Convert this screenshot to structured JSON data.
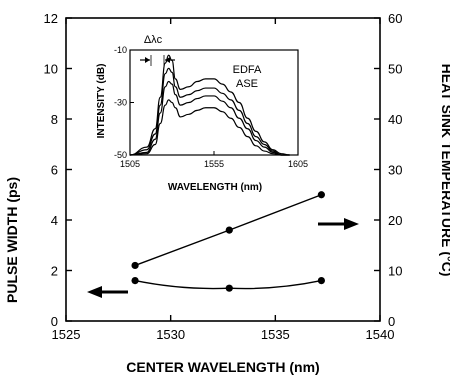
{
  "chart_data": [
    {
      "type": "line",
      "xlabel": "CENTER WAVELENGTH (nm)",
      "ylabel_left": "PULSE WIDTH (ps)",
      "ylabel_right": "HEAT SINK TEMPERATURE (°C)",
      "xlim": [
        1525,
        1540
      ],
      "ylim_left": [
        0,
        12
      ],
      "ylim_right": [
        0,
        60
      ],
      "x_ticks": [
        "1525",
        "1530",
        "1535",
        "1540"
      ],
      "y_left_ticks": [
        "0",
        "2",
        "4",
        "6",
        "8",
        "10",
        "12"
      ],
      "y_right_ticks": [
        "0",
        "10",
        "20",
        "30",
        "40",
        "50",
        "60"
      ],
      "series": [
        {
          "axis": "right",
          "x": [
            1528.3,
            1532.8,
            1537.2
          ],
          "y": [
            11,
            18,
            25
          ],
          "arrow": "right"
        },
        {
          "axis": "left",
          "x": [
            1528.3,
            1532.8,
            1537.2
          ],
          "y": [
            1.6,
            1.3,
            1.6
          ],
          "arrow": "left"
        }
      ],
      "grid": false
    },
    {
      "type": "line",
      "xlabel": "WAVELENGTH (nm)",
      "ylabel": "INTENSITY (dB)",
      "xlim": [
        1505,
        1605
      ],
      "ylim": [
        -50,
        -10
      ],
      "x_ticks": [
        "1505",
        "1555",
        "1605"
      ],
      "y_ticks": [
        "-10",
        "-30",
        "-50"
      ],
      "annotation_label": "Δλc",
      "legend_text": [
        "EDFA",
        "ASE"
      ],
      "series": [
        {
          "x": [
            1505,
            1515,
            1520,
            1523,
            1526,
            1528,
            1530,
            1532,
            1535,
            1540,
            1545,
            1550,
            1555,
            1560,
            1565,
            1570,
            1575,
            1580,
            1585,
            1590,
            1595,
            1600
          ],
          "y": [
            -50,
            -47,
            -40,
            -28,
            -15,
            -12,
            -14,
            -21,
            -25,
            -24,
            -22,
            -21,
            -21,
            -23,
            -26,
            -30,
            -36,
            -41,
            -45,
            -48,
            -49.5,
            -50
          ]
        },
        {
          "x": [
            1505,
            1515,
            1520,
            1523,
            1526,
            1528,
            1530,
            1532,
            1535,
            1540,
            1545,
            1550,
            1555,
            1560,
            1565,
            1570,
            1575,
            1580,
            1585,
            1590,
            1595,
            1600
          ],
          "y": [
            -50,
            -48,
            -42,
            -31,
            -19,
            -17,
            -18.5,
            -24,
            -28,
            -27,
            -25.5,
            -24.5,
            -24.5,
            -26.5,
            -29,
            -33,
            -38,
            -43,
            -46,
            -48.5,
            -50,
            -50
          ]
        },
        {
          "x": [
            1505,
            1515,
            1520,
            1523,
            1526,
            1528,
            1530,
            1532,
            1535,
            1540,
            1545,
            1550,
            1555,
            1560,
            1565,
            1570,
            1575,
            1580,
            1585,
            1590,
            1595,
            1600
          ],
          "y": [
            -50,
            -49,
            -44,
            -34,
            -24,
            -22,
            -23,
            -27,
            -31,
            -30,
            -28.5,
            -27.5,
            -27.5,
            -29.5,
            -32,
            -36,
            -40,
            -44.5,
            -47,
            -49,
            -50,
            -50
          ]
        },
        {
          "x": [
            1505,
            1515,
            1520,
            1523,
            1526,
            1528,
            1530,
            1532,
            1535,
            1540,
            1545,
            1550,
            1555,
            1560,
            1565,
            1570,
            1575,
            1580,
            1585,
            1590,
            1595,
            1600
          ],
          "y": [
            -50,
            -49.5,
            -46,
            -38,
            -31,
            -29,
            -30,
            -32,
            -35.5,
            -34.5,
            -33,
            -32,
            -32,
            -33.5,
            -36,
            -39.5,
            -43,
            -46.5,
            -48.5,
            -49.5,
            -50,
            -50
          ]
        }
      ],
      "grid": false
    }
  ]
}
